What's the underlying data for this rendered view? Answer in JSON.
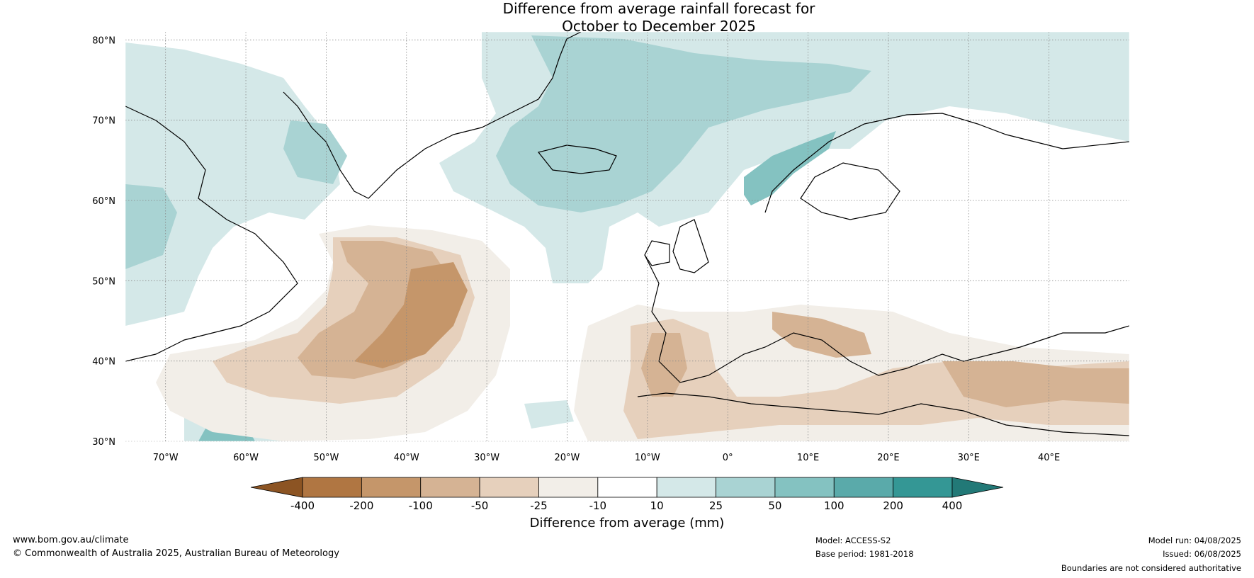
{
  "title_line1": "Difference from average rainfall forecast for",
  "title_line2": "October to December 2025",
  "lat_labels": [
    "80°N",
    "70°N",
    "60°N",
    "50°N",
    "40°N",
    "30°N"
  ],
  "lon_labels": [
    "70°W",
    "60°W",
    "50°W",
    "40°W",
    "30°W",
    "20°W",
    "10°W",
    "0°",
    "10°E",
    "20°E",
    "30°E",
    "40°E"
  ],
  "lat_values": [
    80,
    70,
    60,
    50,
    40,
    30
  ],
  "lon_values": [
    -70,
    -60,
    -50,
    -40,
    -30,
    -20,
    -10,
    0,
    10,
    20,
    30,
    40
  ],
  "map_extent": {
    "lon": [
      -75,
      50
    ],
    "lat": [
      30,
      81
    ]
  },
  "colorbar": {
    "title": "Difference from average (mm)",
    "labels": [
      "-400",
      "-200",
      "-100",
      "-50",
      "-25",
      "-10",
      "10",
      "25",
      "50",
      "100",
      "200",
      "400"
    ],
    "colors": [
      "#8c5423",
      "#b07642",
      "#c5966a",
      "#d5b394",
      "#e6d0bc",
      "#f2eee8",
      "#ffffff",
      "#d4e8e8",
      "#a9d3d3",
      "#84c2c1",
      "#5aaaaa",
      "#349795",
      "#227977"
    ]
  },
  "footer": {
    "website": "www.bom.gov.au/climate",
    "copyright": "© Commonwealth of Australia 2025, Australian Bureau of Meteorology",
    "model": "Model: ACCESS-S2",
    "base_period": "Base period: 1981-2018",
    "model_run": "Model run: 04/08/2025",
    "issued": "Issued: 06/08/2025",
    "disclaimer": "Boundaries are not considered authoritative"
  }
}
